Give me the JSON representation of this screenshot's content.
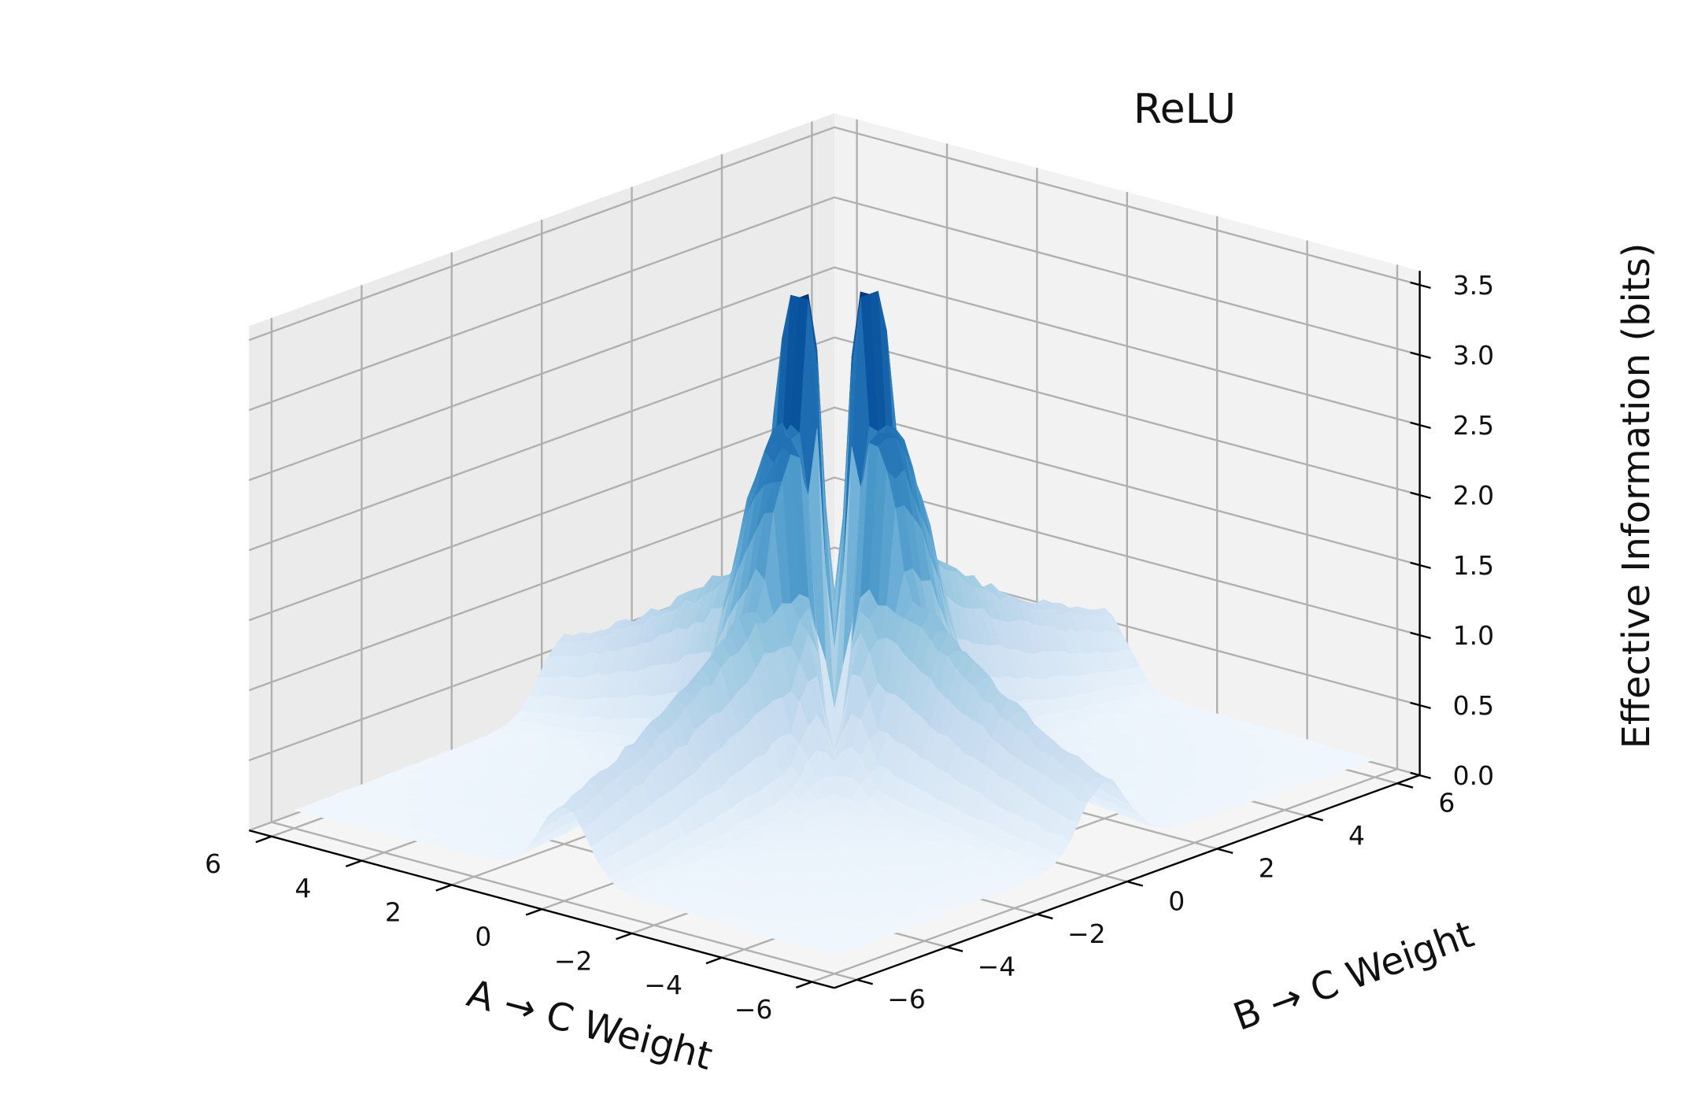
{
  "chart_data": {
    "type": "surface3d",
    "title": "ReLU",
    "xlabel": "A → C Weight",
    "ylabel": "B → C Weight",
    "zlabel": "Effective Information (bits)",
    "x_range": [
      -6.5,
      6.5
    ],
    "y_range": [
      -6.5,
      6.5
    ],
    "zlim": [
      0.0,
      3.6
    ],
    "x_ticks": [
      -6,
      -4,
      -2,
      0,
      2,
      4,
      6
    ],
    "x_tick_labels": [
      "−6",
      "−4",
      "−2",
      "0",
      "2",
      "4",
      "6"
    ],
    "y_ticks": [
      -6,
      -4,
      -2,
      0,
      2,
      4,
      6
    ],
    "y_tick_labels": [
      "−6",
      "−4",
      "−2",
      "0",
      "2",
      "4",
      "6"
    ],
    "z_ticks": [
      0.0,
      0.5,
      1.0,
      1.5,
      2.0,
      2.5,
      3.0,
      3.5
    ],
    "z_tick_labels": [
      "0.0",
      "0.5",
      "1.0",
      "1.5",
      "2.0",
      "2.5",
      "3.0",
      "3.5"
    ],
    "colormap": "Blues",
    "grid": true,
    "surface_features": {
      "peak_value": 3.5,
      "peak_location": "near origin, ridges along both weight axes",
      "center_dip": 0.0,
      "baseline": 0.1
    }
  },
  "colors": {
    "pane_back": "#f2f2f2",
    "pane_side": "#ebebeb",
    "pane_floor": "#f5f5f5",
    "grid": "#b0b0b0",
    "axis": "#000000",
    "cmap_low": "#f7fbff",
    "cmap_mid": "#6baed6",
    "cmap_high": "#08306b"
  }
}
